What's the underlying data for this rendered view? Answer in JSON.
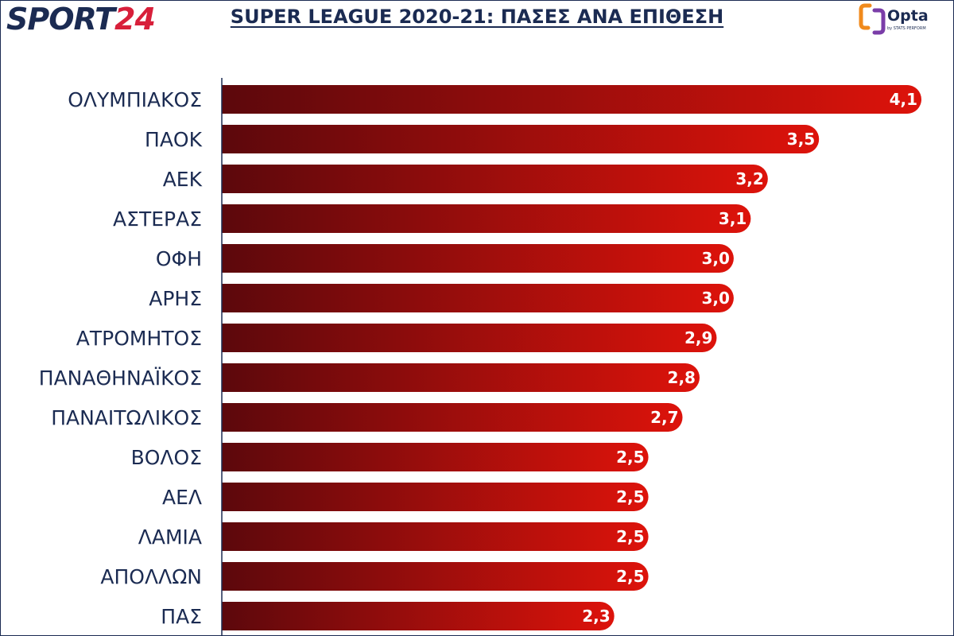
{
  "header": {
    "brand_part_a": "SPORT",
    "brand_part_b": "24",
    "title": "SUPER LEAGUE 2020-21: ΠΑΣΕΣ ΑΝΑ ΕΠΙΘΕΣΗ",
    "opta_word": "Opta",
    "opta_sub": "by STATS PERFORM"
  },
  "colors": {
    "navy": "#1b2b52",
    "brand_red": "#d81f3a",
    "bar_start": "#5c080c",
    "bar_end": "#dd130b"
  },
  "chart_data": {
    "type": "bar",
    "orientation": "horizontal",
    "title": "SUPER LEAGUE 2020-21: ΠΑΣΕΣ ΑΝΑ ΕΠΙΘΕΣΗ",
    "categories": [
      "ΟΛΥΜΠΙΑΚΟΣ",
      "ΠΑΟΚ",
      "ΑΕΚ",
      "ΑΣΤΕΡΑΣ",
      "ΟΦΗ",
      "ΑΡΗΣ",
      "ΑΤΡΟΜΗΤΟΣ",
      "ΠΑΝΑΘΗΝΑΪΚΟΣ",
      "ΠΑΝΑΙΤΩΛΙΚΟΣ",
      "ΒΟΛΟΣ",
      "ΑΕΛ",
      "ΛΑΜΙΑ",
      "ΑΠΟΛΛΩΝ",
      "ΠΑΣ"
    ],
    "values": [
      4.1,
      3.5,
      3.2,
      3.1,
      3.0,
      3.0,
      2.9,
      2.8,
      2.7,
      2.5,
      2.5,
      2.5,
      2.5,
      2.3
    ],
    "value_labels": [
      "4,1",
      "3,5",
      "3,2",
      "3,1",
      "3,0",
      "3,0",
      "2,9",
      "2,8",
      "2,7",
      "2,5",
      "2,5",
      "2,5",
      "2,5",
      "2,3"
    ],
    "xlabel": "",
    "ylabel": "",
    "xlim": [
      0,
      4.1
    ],
    "grid": false,
    "legend": "none"
  }
}
